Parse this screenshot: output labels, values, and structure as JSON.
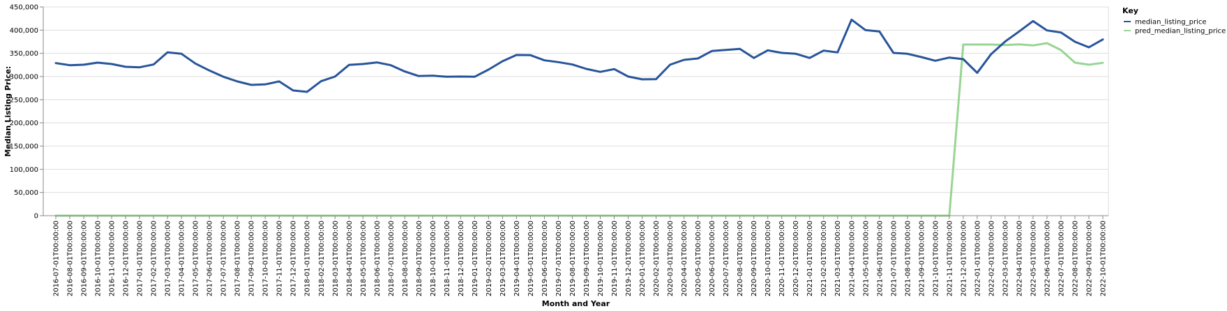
{
  "chart_data": {
    "type": "line",
    "xlabel": "Month and Year",
    "ylabel": "Median Listing Price:",
    "ylim": [
      0,
      450000
    ],
    "yticks": [
      0,
      50000,
      100000,
      150000,
      200000,
      250000,
      300000,
      350000,
      400000,
      450000
    ],
    "ytick_labels": [
      "0",
      "50,000",
      "100,000",
      "150,000",
      "200,000",
      "250,000",
      "300,000",
      "350,000",
      "400,000",
      "450,000"
    ],
    "grid": true,
    "legend": {
      "title": "Key",
      "placement": "top-right"
    },
    "x": [
      "2016-07-01T00:00:00",
      "2016-08-01T00:00:00",
      "2016-09-01T00:00:00",
      "2016-10-01T00:00:00",
      "2016-11-01T00:00:00",
      "2016-12-01T00:00:00",
      "2017-01-01T00:00:00",
      "2017-02-01T00:00:00",
      "2017-03-01T00:00:00",
      "2017-04-01T00:00:00",
      "2017-05-01T00:00:00",
      "2017-06-01T00:00:00",
      "2017-07-01T00:00:00",
      "2017-08-01T00:00:00",
      "2017-09-01T00:00:00",
      "2017-10-01T00:00:00",
      "2017-11-01T00:00:00",
      "2017-12-01T00:00:00",
      "2018-01-01T00:00:00",
      "2018-02-01T00:00:00",
      "2018-03-01T00:00:00",
      "2018-04-01T00:00:00",
      "2018-05-01T00:00:00",
      "2018-06-01T00:00:00",
      "2018-07-01T00:00:00",
      "2018-08-01T00:00:00",
      "2018-09-01T00:00:00",
      "2018-10-01T00:00:00",
      "2018-11-01T00:00:00",
      "2018-12-01T00:00:00",
      "2019-01-01T00:00:00",
      "2019-02-01T00:00:00",
      "2019-03-01T00:00:00",
      "2019-04-01T00:00:00",
      "2019-05-01T00:00:00",
      "2019-06-01T00:00:00",
      "2019-07-01T00:00:00",
      "2019-08-01T00:00:00",
      "2019-09-01T00:00:00",
      "2019-10-01T00:00:00",
      "2019-11-01T00:00:00",
      "2019-12-01T00:00:00",
      "2020-01-01T00:00:00",
      "2020-02-01T00:00:00",
      "2020-03-01T00:00:00",
      "2020-04-01T00:00:00",
      "2020-05-01T00:00:00",
      "2020-06-01T00:00:00",
      "2020-07-01T00:00:00",
      "2020-08-01T00:00:00",
      "2020-09-01T00:00:00",
      "2020-10-01T00:00:00",
      "2020-11-01T00:00:00",
      "2020-12-01T00:00:00",
      "2021-01-01T00:00:00",
      "2021-02-01T00:00:00",
      "2021-03-01T00:00:00",
      "2021-04-01T00:00:00",
      "2021-05-01T00:00:00",
      "2021-06-01T00:00:00",
      "2021-07-01T00:00:00",
      "2021-08-01T00:00:00",
      "2021-09-01T00:00:00",
      "2021-10-01T00:00:00",
      "2021-11-01T00:00:00",
      "2021-12-01T00:00:00",
      "2022-01-01T00:00:00",
      "2022-02-01T00:00:00",
      "2022-03-01T00:00:00",
      "2022-04-01T00:00:00",
      "2022-05-01T00:00:00",
      "2022-06-01T00:00:00",
      "2022-07-01T00:00:00",
      "2022-08-01T00:00:00",
      "2022-09-01T00:00:00",
      "2022-10-01T00:00:00"
    ],
    "series": [
      {
        "name": "median_listing_price",
        "color": "#27549a",
        "values": [
          329000,
          324500,
          325500,
          330000,
          327000,
          321000,
          320000,
          326000,
          352000,
          349000,
          328000,
          313000,
          299500,
          289500,
          282000,
          283000,
          289500,
          270000,
          267000,
          290000,
          300000,
          325000,
          327000,
          330500,
          324500,
          311000,
          301000,
          302000,
          299500,
          300000,
          299500,
          315000,
          333000,
          346500,
          346000,
          335000,
          331000,
          326000,
          316500,
          310000,
          316000,
          300000,
          294000,
          294500,
          325500,
          336000,
          339000,
          355000,
          357500,
          359500,
          340000,
          356500,
          351000,
          349000,
          340000,
          356000,
          352000,
          422500,
          400000,
          397000,
          351000,
          349000,
          342000,
          334000,
          341000,
          337500,
          308000,
          348500,
          375500,
          397000,
          419500,
          399500,
          395000,
          375000,
          363000,
          380000
        ]
      },
      {
        "name": "pred_median_listing_price",
        "color": "#98d594",
        "values": [
          0,
          0,
          0,
          0,
          0,
          0,
          0,
          0,
          0,
          0,
          0,
          0,
          0,
          0,
          0,
          0,
          0,
          0,
          0,
          0,
          0,
          0,
          0,
          0,
          0,
          0,
          0,
          0,
          0,
          0,
          0,
          0,
          0,
          0,
          0,
          0,
          0,
          0,
          0,
          0,
          0,
          0,
          0,
          0,
          0,
          0,
          0,
          0,
          0,
          0,
          0,
          0,
          0,
          0,
          0,
          0,
          0,
          0,
          0,
          0,
          0,
          0,
          0,
          0,
          0,
          369000,
          369000,
          369000,
          368000,
          369500,
          367000,
          372000,
          357000,
          330000,
          325500,
          329500
        ]
      }
    ]
  }
}
